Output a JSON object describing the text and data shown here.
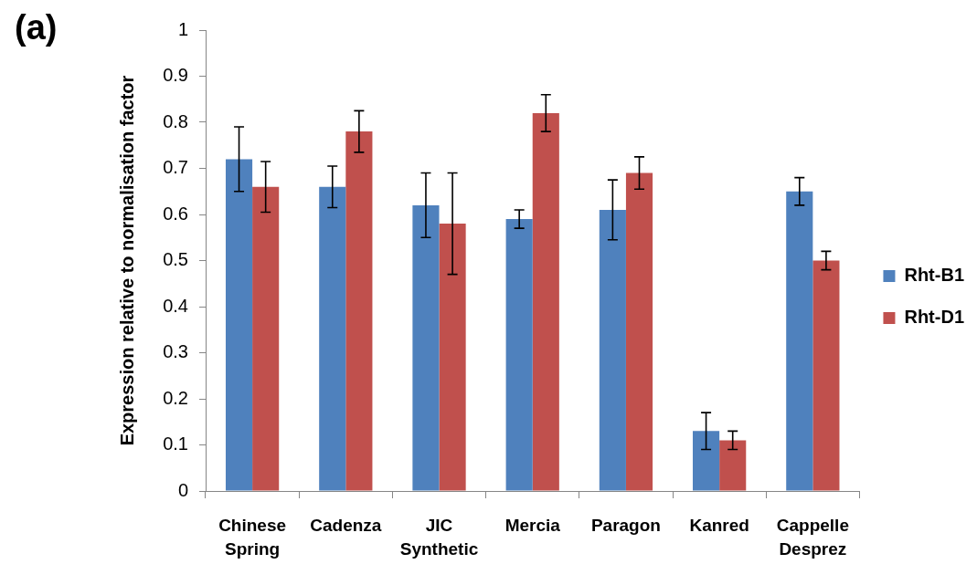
{
  "chart_data": {
    "type": "bar",
    "ylabel": "Expression relative to normalisation factor",
    "annotations": [
      "(a)"
    ],
    "categories": [
      "Chinese Spring",
      "Cadenza",
      "JIC Synthetic",
      "Mercia",
      "Paragon",
      "Kanred",
      "Cappelle Desprez"
    ],
    "series": [
      {
        "name": "Rht-B1",
        "color": "#4f81bd",
        "values": [
          0.72,
          0.66,
          0.62,
          0.59,
          0.61,
          0.13,
          0.65
        ],
        "errors": [
          0.07,
          0.045,
          0.07,
          0.02,
          0.065,
          0.04,
          0.03
        ]
      },
      {
        "name": "Rht-D1",
        "color": "#c0504d",
        "values": [
          0.66,
          0.78,
          0.58,
          0.82,
          0.69,
          0.11,
          0.5
        ],
        "errors": [
          0.055,
          0.045,
          0.11,
          0.04,
          0.035,
          0.02,
          0.02
        ]
      }
    ],
    "ylim": [
      0,
      1
    ],
    "yticks": [
      0,
      0.1,
      0.2,
      0.3,
      0.4,
      0.5,
      0.6,
      0.7,
      0.8,
      0.9,
      1
    ],
    "legend": "right"
  }
}
